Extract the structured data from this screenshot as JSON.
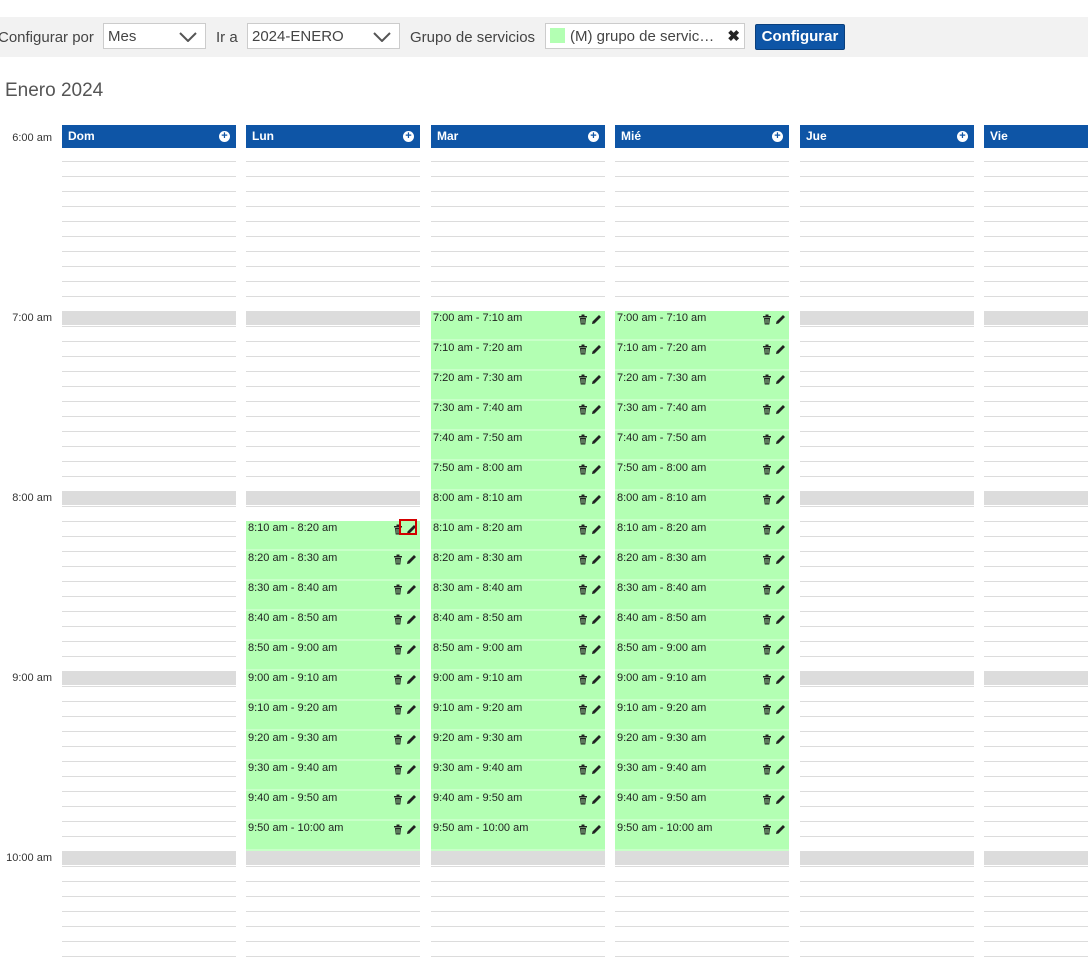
{
  "toolbar": {
    "configure_by_label": "Configurar por",
    "configure_by_value": "Mes",
    "go_to_label": "Ir a",
    "go_to_value": "2024-ENERO",
    "service_group_label": "Grupo de servicios",
    "service_group_value": "(M) grupo de servic…",
    "configure_button": "Configurar"
  },
  "calendar": {
    "month_title": "Enero 2024",
    "hours": [
      "6:00 am",
      "7:00 am",
      "8:00 am",
      "9:00 am",
      "10:00 am"
    ],
    "days": [
      {
        "name": "Dom",
        "slots": []
      },
      {
        "name": "Lun",
        "slots": [
          "8:10 am - 8:20 am",
          "8:20 am - 8:30 am",
          "8:30 am - 8:40 am",
          "8:40 am - 8:50 am",
          "8:50 am - 9:00 am",
          "9:00 am - 9:10 am",
          "9:10 am - 9:20 am",
          "9:20 am - 9:30 am",
          "9:30 am - 9:40 am",
          "9:40 am - 9:50 am",
          "9:50 am - 10:00 am"
        ]
      },
      {
        "name": "Mar",
        "slots": [
          "7:00 am - 7:10 am",
          "7:10 am - 7:20 am",
          "7:20 am - 7:30 am",
          "7:30 am - 7:40 am",
          "7:40 am - 7:50 am",
          "7:50 am - 8:00 am",
          "8:00 am - 8:10 am",
          "8:10 am - 8:20 am",
          "8:20 am - 8:30 am",
          "8:30 am - 8:40 am",
          "8:40 am - 8:50 am",
          "8:50 am - 9:00 am",
          "9:00 am - 9:10 am",
          "9:10 am - 9:20 am",
          "9:20 am - 9:30 am",
          "9:30 am - 9:40 am",
          "9:40 am - 9:50 am",
          "9:50 am - 10:00 am"
        ]
      },
      {
        "name": "Mié",
        "slots": [
          "7:00 am - 7:10 am",
          "7:10 am - 7:20 am",
          "7:20 am - 7:30 am",
          "7:30 am - 7:40 am",
          "7:40 am - 7:50 am",
          "7:50 am - 8:00 am",
          "8:00 am - 8:10 am",
          "8:10 am - 8:20 am",
          "8:20 am - 8:30 am",
          "8:30 am - 8:40 am",
          "8:40 am - 8:50 am",
          "8:50 am - 9:00 am",
          "9:00 am - 9:10 am",
          "9:10 am - 9:20 am",
          "9:20 am - 9:30 am",
          "9:30 am - 9:40 am",
          "9:40 am - 9:50 am",
          "9:50 am - 10:00 am"
        ]
      },
      {
        "name": "Jue",
        "slots": []
      },
      {
        "name": "Vie",
        "slots": []
      }
    ]
  },
  "colors": {
    "header_blue": "#0e55a6",
    "slot_green": "#b3ffb3",
    "hour_bar_gray": "#dcdcdc",
    "highlight_red": "#d40000"
  },
  "icons": {
    "add": "plus-circle-icon",
    "delete": "trash-icon",
    "edit": "pencil-icon",
    "dropdown": "chevron-down-icon",
    "clear": "close-icon"
  }
}
